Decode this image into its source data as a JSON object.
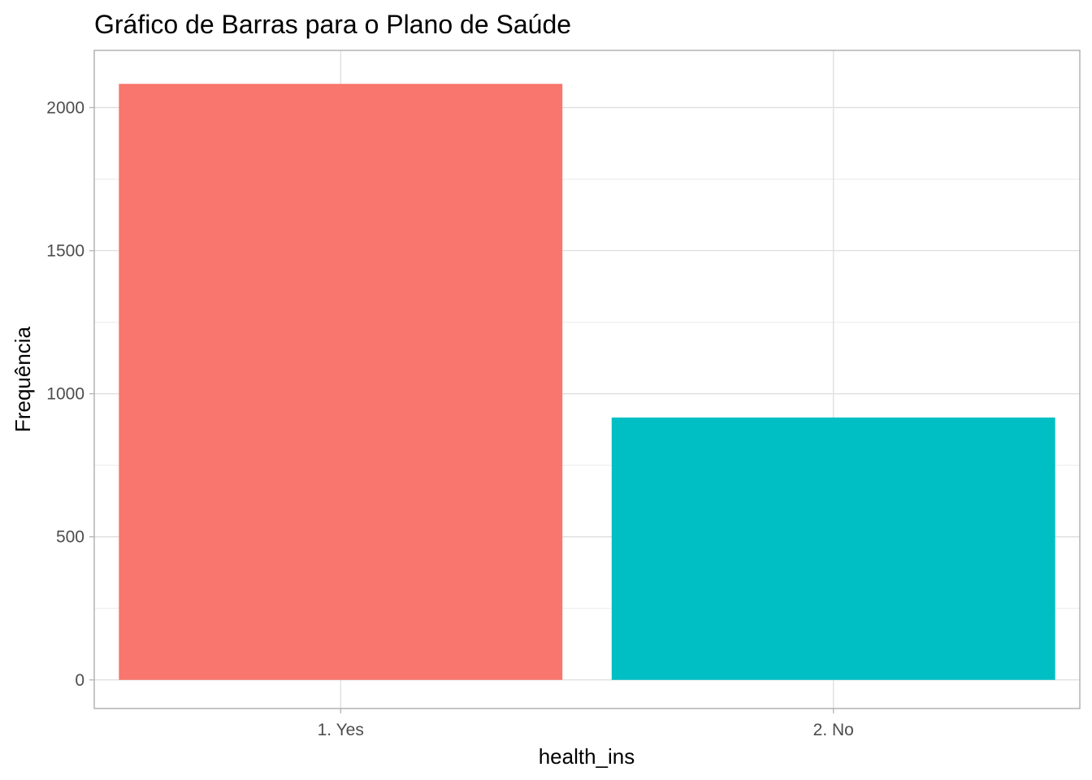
{
  "chart_data": {
    "type": "bar",
    "title": "Gráfico de Barras para o Plano de Saúde",
    "xlabel": "health_ins",
    "ylabel": "Frequência",
    "categories": [
      "1. Yes",
      "2. No"
    ],
    "values": [
      2083,
      917
    ],
    "colors": [
      "#F8766D",
      "#00BFC4"
    ],
    "ylim": [
      -100,
      2200
    ],
    "yticks": [
      0,
      500,
      1000,
      1500,
      2000
    ],
    "grid": true,
    "legend": "none"
  }
}
